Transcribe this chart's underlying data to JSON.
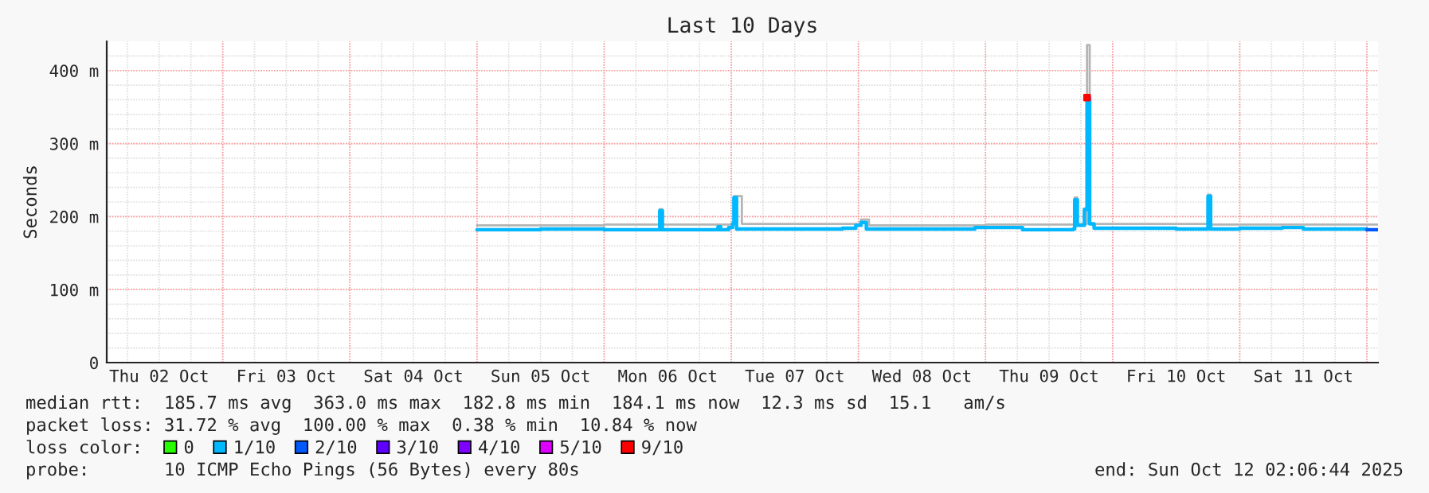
{
  "chart_data": {
    "type": "step",
    "title": "Last 10 Days",
    "ylabel": "Seconds",
    "xlim": [
      "2025-10-02T02:06",
      "2025-10-12T02:06"
    ],
    "xticks": [
      {
        "value": "2025-10-02T12:00",
        "label": "Thu 02 Oct"
      },
      {
        "value": "2025-10-03T12:00",
        "label": "Fri 03 Oct"
      },
      {
        "value": "2025-10-04T12:00",
        "label": "Sat 04 Oct"
      },
      {
        "value": "2025-10-05T12:00",
        "label": "Sun 05 Oct"
      },
      {
        "value": "2025-10-06T12:00",
        "label": "Mon 06 Oct"
      },
      {
        "value": "2025-10-07T12:00",
        "label": "Tue 07 Oct"
      },
      {
        "value": "2025-10-08T12:00",
        "label": "Wed 08 Oct"
      },
      {
        "value": "2025-10-09T12:00",
        "label": "Thu 09 Oct"
      },
      {
        "value": "2025-10-10T12:00",
        "label": "Fri 10 Oct"
      },
      {
        "value": "2025-10-11T12:00",
        "label": "Sat 11 Oct"
      }
    ],
    "ylim": [
      0,
      440
    ],
    "yticks": [
      0,
      {
        "value": 100,
        "label": "100 m"
      },
      {
        "value": 200,
        "label": "200 m"
      },
      {
        "value": 300,
        "label": "300 m"
      },
      {
        "value": 400,
        "label": "400 m"
      }
    ],
    "grid": true,
    "legend": "bottom",
    "legend_title": "loss color:",
    "series": [
      {
        "color": "#b4b4b4",
        "x": [
          "2025-10-05T00:00",
          "2025-10-06T00:00",
          "2025-10-06T10:00",
          "2025-10-06T10:30",
          "2025-10-06T11:00",
          "2025-10-07T00:00",
          "2025-10-07T00:30",
          "2025-10-07T02:00",
          "2025-10-08T00:00",
          "2025-10-08T00:30",
          "2025-10-08T02:00",
          "2025-10-09T00:00",
          "2025-10-09T16:50",
          "2025-10-09T17:20",
          "2025-10-09T19:10",
          "2025-10-09T19:40",
          "2025-10-10T18:00",
          "2025-10-10T18:30",
          "2025-10-11T00:00",
          "2025-10-12T02:00"
        ],
        "values": [
          188,
          189,
          189,
          210,
          189,
          190,
          228,
          190,
          190,
          196,
          188,
          189,
          226,
          190,
          435,
          190,
          230,
          189,
          189,
          189
        ]
      },
      {
        "name": "0",
        "color": "#26ff00"
      },
      {
        "name": "1/10",
        "color": "#00b8ff",
        "x": [
          "2025-10-05T00:00",
          "2025-10-05T12:00",
          "2025-10-06T00:00",
          "2025-10-06T10:00",
          "2025-10-06T10:30",
          "2025-10-06T11:00",
          "2025-10-06T21:00",
          "2025-10-06T21:30",
          "2025-10-06T22:00",
          "2025-10-06T23:30",
          "2025-10-07T00:15",
          "2025-10-07T00:30",
          "2025-10-07T01:00",
          "2025-10-07T12:00",
          "2025-10-07T21:00",
          "2025-10-07T23:30",
          "2025-10-08T00:30",
          "2025-10-08T01:30",
          "2025-10-08T12:00",
          "2025-10-08T22:00",
          "2025-10-09T06:00",
          "2025-10-09T07:00",
          "2025-10-09T16:30",
          "2025-10-09T16:50",
          "2025-10-09T17:20",
          "2025-10-09T18:40",
          "2025-10-09T19:10",
          "2025-10-09T19:40",
          "2025-10-09T20:30",
          "2025-10-10T12:00",
          "2025-10-10T17:30",
          "2025-10-10T18:00",
          "2025-10-10T18:30",
          "2025-10-11T00:00",
          "2025-10-11T08:00",
          "2025-10-11T12:00",
          "2025-10-12T00:00"
        ],
        "values": [
          182,
          183,
          182,
          182,
          208,
          182,
          182,
          186,
          182,
          185,
          190,
          226,
          183,
          183,
          184,
          188,
          192,
          183,
          183,
          185,
          185,
          182,
          183,
          223,
          188,
          210,
          363,
          190,
          184,
          183,
          183,
          228,
          183,
          184,
          185,
          183,
          183
        ]
      },
      {
        "name": "2/10",
        "color": "#0059ff",
        "x": [
          "2025-10-12T00:00",
          "2025-10-12T02:00"
        ],
        "values": [
          182,
          182
        ]
      },
      {
        "name": "3/10",
        "color": "#5e00ff"
      },
      {
        "name": "4/10",
        "color": "#7e00ff"
      },
      {
        "name": "5/10",
        "color": "#dd00ff"
      },
      {
        "name": "9/10",
        "color": "#ff0000",
        "type": "scatter",
        "x": [
          "2025-10-09T19:10"
        ],
        "values": [
          363
        ]
      }
    ],
    "annotations": [
      "median rtt:  185.7 ms avg  363.0 ms max  182.8 ms min  184.1 ms now  12.3 ms sd  15.1   am/s",
      "packet loss: 31.72 % avg  100.00 % max  0.38 % min  10.84 % now",
      "probe:       10 ICMP Echo Pings (56 Bytes) every 80s",
      "end: Sun Oct 12 02:06:44 2025"
    ]
  }
}
